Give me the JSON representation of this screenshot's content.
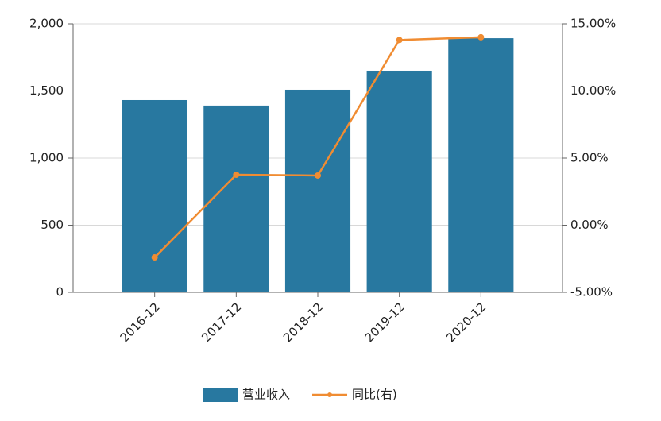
{
  "chart_data": {
    "type": "bar_line",
    "categories": [
      "2016-12",
      "2017-12",
      "2018-12",
      "2019-12",
      "2020-12"
    ],
    "series": [
      {
        "name": "营业收入",
        "color": "#2878a0",
        "type": "bar",
        "values": [
          1432,
          1391,
          1509,
          1651,
          1893
        ]
      },
      {
        "name": "同比(右)",
        "color": "#f08c32",
        "type": "line",
        "axis": "y2",
        "values": [
          -2.4,
          3.76,
          3.7,
          13.8,
          14.0
        ]
      }
    ],
    "ylim": [
      0,
      2000
    ],
    "yticks": [
      0,
      500,
      {
        "value": 1000,
        "label": "1,000"
      },
      {
        "value": 1500,
        "label": "1,500"
      },
      {
        "value": 2000,
        "label": "2,000"
      }
    ],
    "y2lim": [
      -5,
      15
    ],
    "y2ticks": [
      {
        "value": -5,
        "label": "-5.00%"
      },
      {
        "value": 0,
        "label": "0.00%"
      },
      {
        "value": 5,
        "label": "5.00%"
      },
      {
        "value": 10,
        "label": "10.00%"
      },
      {
        "value": 15,
        "label": "15.00%"
      }
    ],
    "grid": true
  }
}
